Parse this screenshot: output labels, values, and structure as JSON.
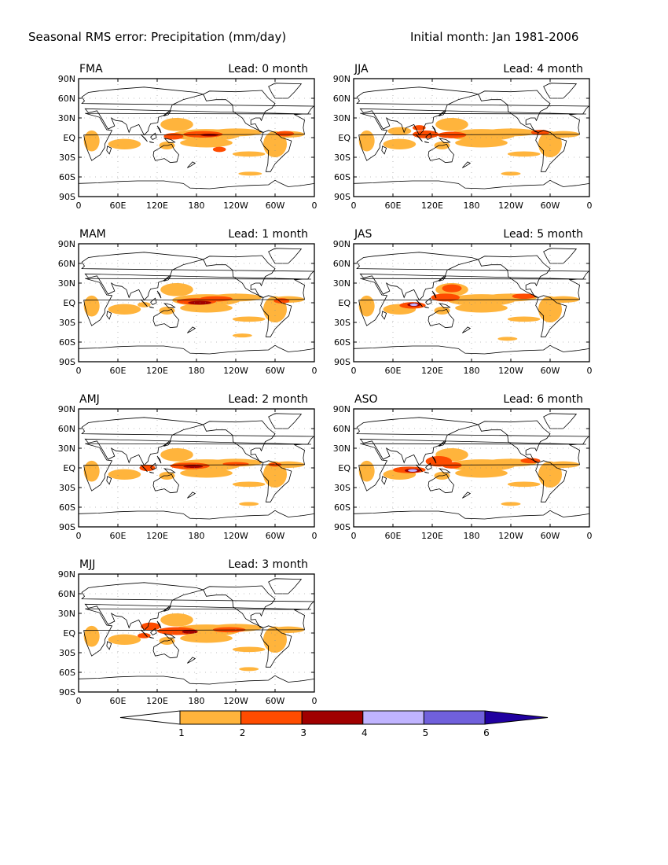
{
  "title": "Seasonal RMS error: Precipitation (mm/day)",
  "initial": "Initial month: Jan 1981-2006",
  "lat_labels": [
    "90N",
    "60N",
    "30N",
    "EQ",
    "30S",
    "60S",
    "90S"
  ],
  "lon_labels": [
    "0",
    "60E",
    "120E",
    "180",
    "120W",
    "60W",
    "0"
  ],
  "panels": [
    {
      "season": "FMA",
      "lead": "Lead: 0 month"
    },
    {
      "season": "JJA",
      "lead": "Lead: 4 month"
    },
    {
      "season": "MAM",
      "lead": "Lead: 1 month"
    },
    {
      "season": "JAS",
      "lead": "Lead: 5 month"
    },
    {
      "season": "AMJ",
      "lead": "Lead: 2 month"
    },
    {
      "season": "ASO",
      "lead": "Lead: 6 month"
    },
    {
      "season": "MJJ",
      "lead": "Lead: 3 month"
    }
  ],
  "colorbar": {
    "labels": [
      "1",
      "2",
      "3",
      "4",
      "5",
      "6"
    ],
    "colors": [
      "#ffb43c",
      "#ff4c00",
      "#a00000",
      "#c0b4ff",
      "#7060dc",
      "#2000a0"
    ],
    "below_color": "#ffffff"
  }
}
